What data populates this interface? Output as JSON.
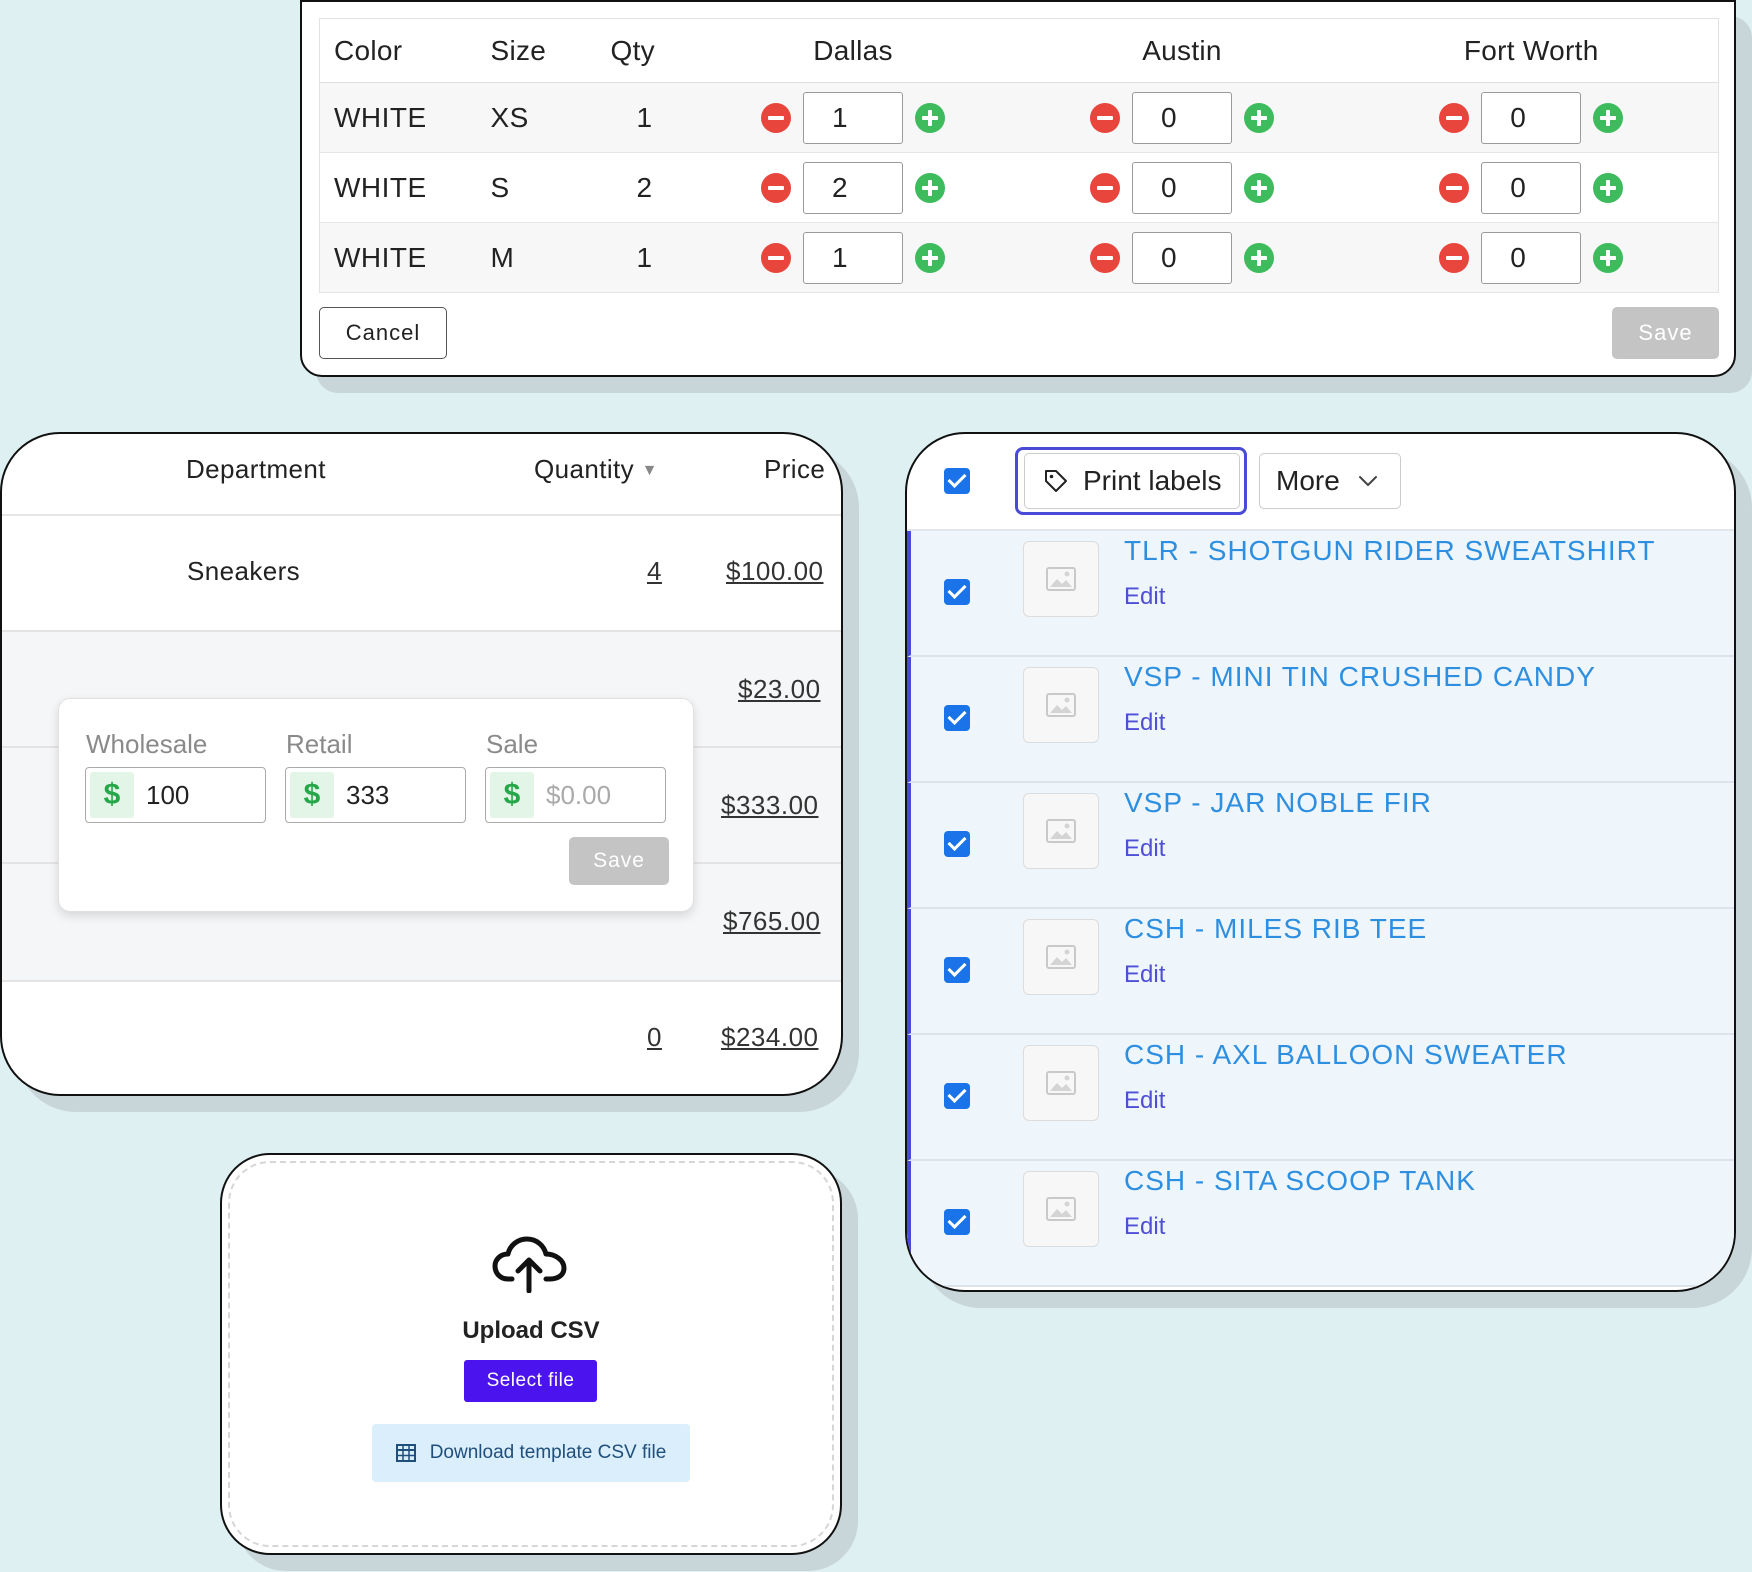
{
  "inventory": {
    "headers": {
      "color": "Color",
      "size": "Size",
      "qty": "Qty",
      "loc1": "Dallas",
      "loc2": "Austin",
      "loc3": "Fort Worth"
    },
    "rows": [
      {
        "color": "WHITE",
        "size": "XS",
        "qty": "1",
        "dallas": "1",
        "austin": "0",
        "fort_worth": "0"
      },
      {
        "color": "WHITE",
        "size": "S",
        "qty": "2",
        "dallas": "2",
        "austin": "0",
        "fort_worth": "0"
      },
      {
        "color": "WHITE",
        "size": "M",
        "qty": "1",
        "dallas": "1",
        "austin": "0",
        "fort_worth": "0"
      }
    ],
    "cancel_label": "Cancel",
    "save_label": "Save"
  },
  "prices": {
    "headers": {
      "department": "Department",
      "quantity": "Quantity",
      "price": "Price"
    },
    "rows": [
      {
        "department": "Sneakers",
        "quantity": "4",
        "price": "$100.00"
      },
      {
        "department": "",
        "quantity": "",
        "price": "$23.00"
      },
      {
        "department": "",
        "quantity": "",
        "price": "$333.00"
      },
      {
        "department": "",
        "quantity": "",
        "price": "$765.00"
      },
      {
        "department": "",
        "quantity": "0",
        "price": "$234.00"
      }
    ],
    "popover": {
      "wholesale_label": "Wholesale",
      "retail_label": "Retail",
      "sale_label": "Sale",
      "currency_symbol": "$",
      "wholesale_value": "100",
      "retail_value": "333",
      "sale_placeholder": "$0.00",
      "save_label": "Save"
    }
  },
  "upload": {
    "title": "Upload CSV",
    "select_label": "Select file",
    "download_label": "Download template CSV file"
  },
  "labels": {
    "print_label": "Print labels",
    "more_label": "More",
    "items": [
      {
        "name": "TLR - SHOTGUN RIDER SWEATSHIRT",
        "edit": "Edit"
      },
      {
        "name": "VSP - MINI TIN CRUSHED CANDY",
        "edit": "Edit"
      },
      {
        "name": "VSP - JAR NOBLE FIR",
        "edit": "Edit"
      },
      {
        "name": "CSH - MILES RIB TEE",
        "edit": "Edit"
      },
      {
        "name": "CSH - AXL BALLOON SWEATER",
        "edit": "Edit"
      },
      {
        "name": "CSH - SITA SCOOP TANK",
        "edit": "Edit"
      }
    ]
  },
  "colors": {
    "background": "#dff0f3",
    "accent_purple": "#4b14ee",
    "link_blue": "#2e8fe0",
    "minus_red": "#e8453c",
    "plus_green": "#3dbb5d"
  }
}
